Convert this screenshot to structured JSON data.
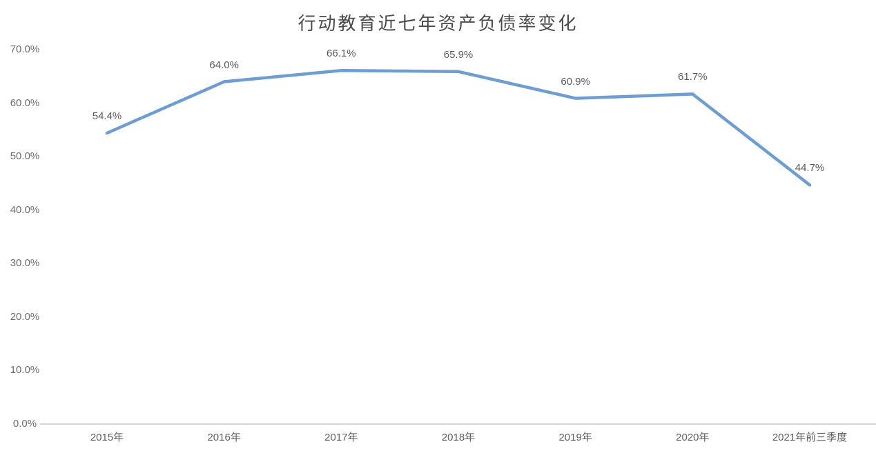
{
  "chart_data": {
    "type": "line",
    "title": "行动教育近七年资产负债率变化",
    "categories": [
      "2015年",
      "2016年",
      "2017年",
      "2018年",
      "2019年",
      "2020年",
      "2021年前三季度"
    ],
    "values": [
      54.4,
      64.0,
      66.1,
      65.9,
      60.9,
      61.7,
      44.7
    ],
    "data_labels": [
      "54.4%",
      "64.0%",
      "66.1%",
      "65.9%",
      "60.9%",
      "61.7%",
      "44.7%"
    ],
    "xlabel": "",
    "ylabel": "",
    "ylim": [
      0,
      70
    ],
    "ytick_values": [
      0,
      10,
      20,
      30,
      40,
      50,
      60,
      70
    ],
    "ytick_labels": [
      "0.0%",
      "10.0%",
      "20.0%",
      "30.0%",
      "40.0%",
      "50.0%",
      "60.0%",
      "70.0%"
    ],
    "grid": false,
    "legend": "none",
    "line_color": "#6E9DD2",
    "data_label_color": "#595959",
    "axis_text_color": "#6e6e6e",
    "axis_line_color": "#d5d5d5",
    "title_color": "#4a4a4a",
    "background_color": "#ffffff"
  }
}
